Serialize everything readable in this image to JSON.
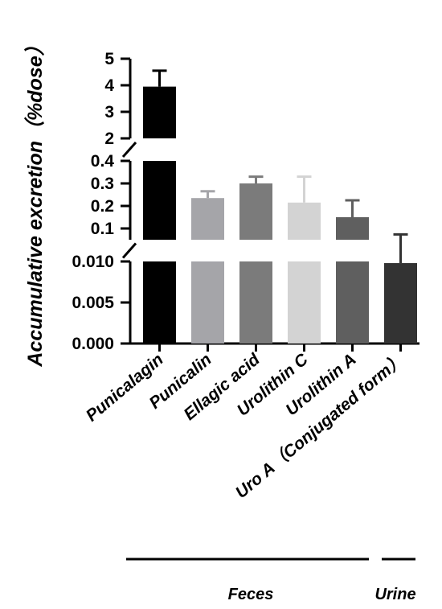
{
  "chart_data": {
    "type": "bar",
    "ylabel": "Accumulative excretion（%dose）",
    "categories": [
      "Punicalagin",
      "Punicalin",
      "Ellagic acid",
      "Urolithin C",
      "Urolithin A",
      "Uro A（Conjugated form）"
    ],
    "values": [
      3.95,
      0.235,
      0.3,
      0.215,
      0.15,
      0.0098
    ],
    "error_upper": [
      0.6,
      0.03,
      0.03,
      0.115,
      0.075,
      0.0035
    ],
    "colors": [
      "#000000",
      "#a5a5a9",
      "#7b7b7b",
      "#d3d3d3",
      "#5f5f5f",
      "#333333"
    ],
    "y_axis_segments": [
      {
        "range": [
          0,
          0.01
        ],
        "ticks": [
          "0.000",
          "0.005",
          "0.010"
        ]
      },
      {
        "range": [
          0.05,
          0.4
        ],
        "ticks": [
          "0.1",
          "0.2",
          "0.3",
          "0.4"
        ]
      },
      {
        "range": [
          2,
          5
        ],
        "ticks": [
          "2",
          "3",
          "4",
          "5"
        ]
      }
    ],
    "groups": [
      {
        "label": "Feces",
        "categories": [
          "Punicalagin",
          "Punicalin",
          "Ellagic acid",
          "Urolithin C",
          "Urolithin A"
        ]
      },
      {
        "label": "Urine",
        "categories": [
          "Uro A（Conjugated form）"
        ]
      }
    ],
    "grid": false,
    "axis_breaks": true
  }
}
